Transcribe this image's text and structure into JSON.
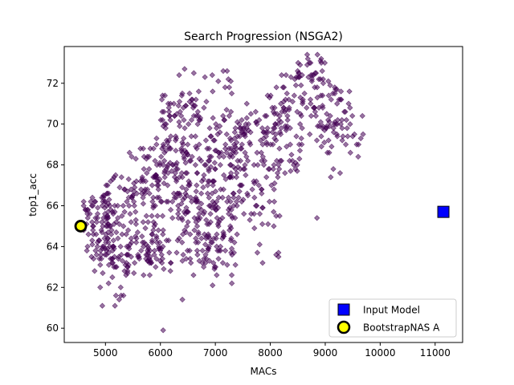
{
  "chart_data": {
    "type": "scatter",
    "title": "Search Progression (NSGA2)",
    "xlabel": "MACs",
    "ylabel": "top1_acc",
    "xlim": [
      4250,
      11500
    ],
    "ylim": [
      59.3,
      73.8
    ],
    "xticks": [
      5000,
      6000,
      7000,
      8000,
      9000,
      10000,
      11000
    ],
    "yticks": [
      60,
      62,
      64,
      66,
      68,
      70,
      72
    ],
    "grid": false,
    "legend_position": "bottom-right",
    "colors": {
      "search_points": "#440154",
      "input_model_fill": "#0000ff",
      "bootstrap_fill": "#ffff00",
      "marker_edge": "#000000"
    },
    "series": [
      {
        "name": "Input Model",
        "marker": "square",
        "points": [
          [
            11150,
            65.7
          ]
        ]
      },
      {
        "name": "BootstrapNAS A",
        "marker": "circle",
        "points": [
          [
            4550,
            65.0
          ]
        ]
      },
      {
        "name": "",
        "marker": "diamond",
        "clusters": [
          {
            "x": [
              4600,
              5200
            ],
            "y": [
              63.3,
              66.4
            ],
            "n": 90
          },
          {
            "x": [
              4800,
              5450
            ],
            "y": [
              61.0,
              64.0
            ],
            "n": 28
          },
          {
            "x": [
              5000,
              6000
            ],
            "y": [
              63.0,
              67.5
            ],
            "n": 120
          },
          {
            "x": [
              5300,
              6200
            ],
            "y": [
              62.3,
              64.5
            ],
            "n": 40
          },
          {
            "x": [
              5400,
              6500
            ],
            "y": [
              66.0,
              69.0
            ],
            "n": 70
          },
          {
            "x": [
              5900,
              7100
            ],
            "y": [
              63.0,
              69.3
            ],
            "n": 160
          },
          {
            "x": [
              6000,
              6700
            ],
            "y": [
              69.0,
              71.6
            ],
            "n": 55
          },
          {
            "x": [
              6500,
              7400
            ],
            "y": [
              62.5,
              66.5
            ],
            "n": 70
          },
          {
            "x": [
              6600,
              7500
            ],
            "y": [
              66.0,
              70.5
            ],
            "n": 90
          },
          {
            "x": [
              6300,
              7300
            ],
            "y": [
              70.5,
              72.6
            ],
            "n": 22
          },
          {
            "x": [
              7200,
              8200
            ],
            "y": [
              65.0,
              70.5
            ],
            "n": 110
          },
          {
            "x": [
              7500,
              8600
            ],
            "y": [
              67.5,
              71.5
            ],
            "n": 70
          },
          {
            "x": [
              8000,
              9400
            ],
            "y": [
              69.0,
              72.5
            ],
            "n": 80
          },
          {
            "x": [
              8400,
              9100
            ],
            "y": [
              71.5,
              73.4
            ],
            "n": 35
          },
          {
            "x": [
              8800,
              9700
            ],
            "y": [
              68.5,
              71.7
            ],
            "n": 35
          },
          {
            "x": [
              7600,
              8200
            ],
            "y": [
              62.2,
              64.8
            ],
            "n": 6
          },
          {
            "x": [
              9100,
              9500
            ],
            "y": [
              67.3,
              67.8
            ],
            "n": 3
          }
        ],
        "extra_points": [
          [
            6050,
            59.9
          ],
          [
            6950,
            62.1
          ],
          [
            7300,
            62.2
          ],
          [
            6400,
            61.4
          ],
          [
            5250,
            61.4
          ],
          [
            8150,
            63.5
          ],
          [
            8850,
            65.4
          ],
          [
            9600,
            68.4
          ]
        ]
      }
    ]
  }
}
